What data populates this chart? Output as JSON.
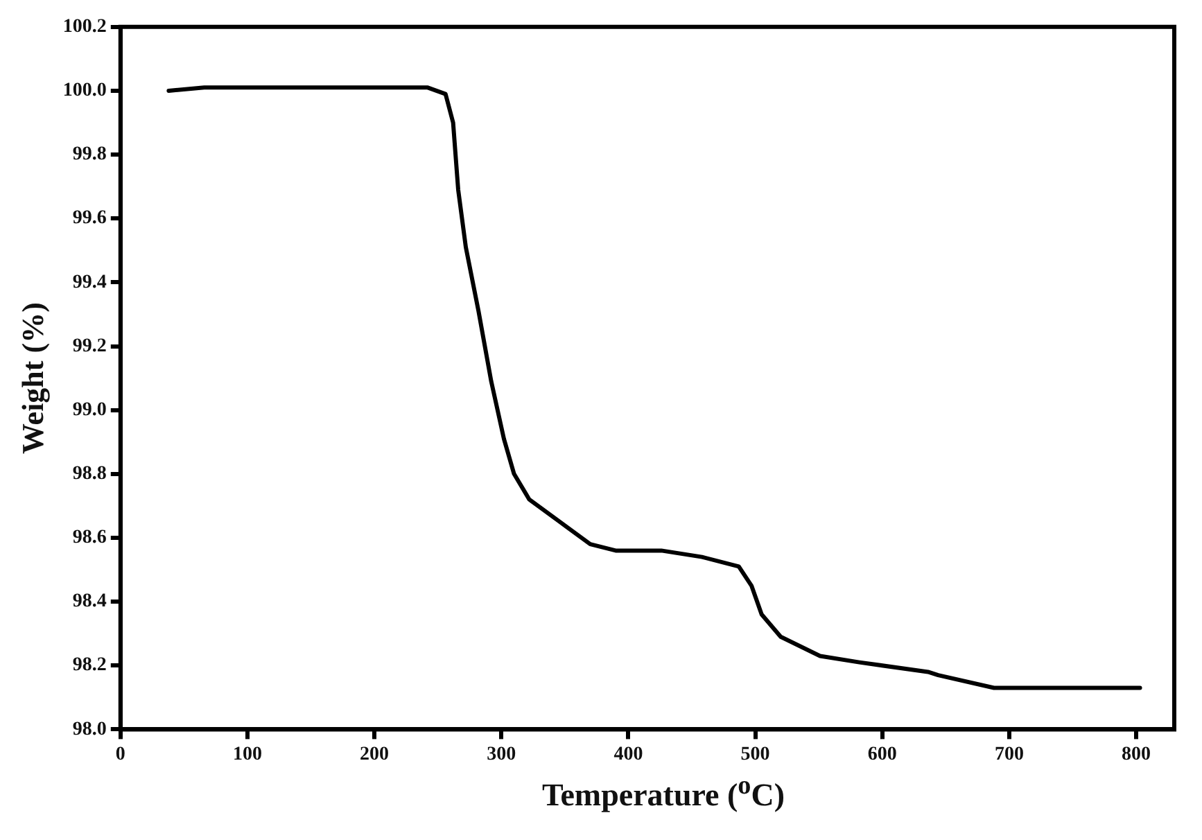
{
  "chart_data": {
    "type": "line",
    "xlabel": "Temperature ($^{o}$C)",
    "ylabel": "Weight (%)",
    "x": [
      38,
      66,
      242,
      256,
      262,
      266,
      272,
      282,
      292,
      302,
      310,
      322,
      346,
      370,
      390,
      426,
      458,
      487,
      497,
      505,
      520,
      551,
      582,
      636,
      644,
      688,
      803
    ],
    "series": [
      {
        "color": "#000000",
        "values": [
          100.0,
          100.01,
          100.01,
          99.99,
          99.9,
          99.69,
          99.51,
          99.31,
          99.09,
          98.91,
          98.8,
          98.72,
          98.65,
          98.58,
          98.56,
          98.56,
          98.54,
          98.51,
          98.45,
          98.36,
          98.29,
          98.23,
          98.21,
          98.18,
          98.17,
          98.13,
          98.13
        ]
      }
    ],
    "xlim": [
      0,
      830
    ],
    "xticks": [
      0,
      100,
      200,
      300,
      400,
      500,
      600,
      700,
      800
    ],
    "ylim": [
      98.0,
      100.2
    ],
    "yticks": [
      {
        "value": 98.0,
        "label": "98.0"
      },
      {
        "value": 98.2,
        "label": "98.2"
      },
      {
        "value": 98.4,
        "label": "98.4"
      },
      {
        "value": 98.6,
        "label": "98.6"
      },
      {
        "value": 98.8,
        "label": "98.8"
      },
      {
        "value": 99.0,
        "label": "99.0"
      },
      {
        "value": 99.2,
        "label": "99.2"
      },
      {
        "value": 99.4,
        "label": "99.4"
      },
      {
        "value": 99.6,
        "label": "99.6"
      },
      {
        "value": 99.8,
        "label": "99.8"
      },
      {
        "value": 100.0,
        "label": "100.0"
      },
      {
        "value": 100.2,
        "label": "100.2"
      }
    ],
    "legend": false,
    "marker": "none",
    "line_style": "solid"
  }
}
